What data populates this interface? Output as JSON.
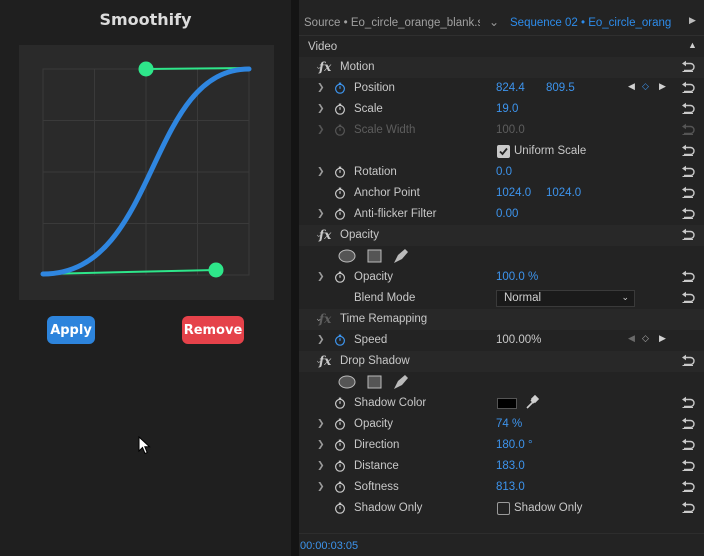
{
  "plugin": {
    "title": "Smoothify",
    "apply_label": "Apply",
    "remove_label": "Remove",
    "curve": {
      "handle_color": "#2ee68a",
      "curve_color": "#2f86e0"
    }
  },
  "tabs": {
    "source": "Source • Eo_circle_orange_blank.s...",
    "sequence": "Sequence 02 • Eo_circle_orang..."
  },
  "video_label": "Video",
  "motion": {
    "name": "Motion",
    "position": {
      "label": "Position",
      "x": "824.4",
      "y": "809.5"
    },
    "scale": {
      "label": "Scale",
      "value": "19.0"
    },
    "scale_width": {
      "label": "Scale Width",
      "value": "100.0"
    },
    "uniform_scale": {
      "label": "Uniform Scale",
      "checked": true
    },
    "rotation": {
      "label": "Rotation",
      "value": "0.0"
    },
    "anchor_point": {
      "label": "Anchor Point",
      "x": "1024.0",
      "y": "1024.0"
    },
    "anti_flicker": {
      "label": "Anti-flicker Filter",
      "value": "0.00"
    }
  },
  "opacity": {
    "name": "Opacity",
    "opacity": {
      "label": "Opacity",
      "value": "100.0 %"
    },
    "blend_mode": {
      "label": "Blend Mode",
      "value": "Normal"
    }
  },
  "time_remapping": {
    "name": "Time Remapping",
    "speed": {
      "label": "Speed",
      "value": "100.00%"
    }
  },
  "drop_shadow": {
    "name": "Drop Shadow",
    "shadow_color": {
      "label": "Shadow Color",
      "color": "#000000"
    },
    "opacity": {
      "label": "Opacity",
      "value": "74 %"
    },
    "direction": {
      "label": "Direction",
      "value": "180.0 °"
    },
    "distance": {
      "label": "Distance",
      "value": "183.0"
    },
    "softness": {
      "label": "Softness",
      "value": "813.0"
    },
    "shadow_only": {
      "label": "Shadow Only",
      "checkbox_label": "Shadow Only",
      "checked": false
    }
  },
  "timecode": "00:00:03:05",
  "colors": {
    "accent": "#3d94ed",
    "apply": "#2d84dc",
    "remove": "#e5424a"
  }
}
